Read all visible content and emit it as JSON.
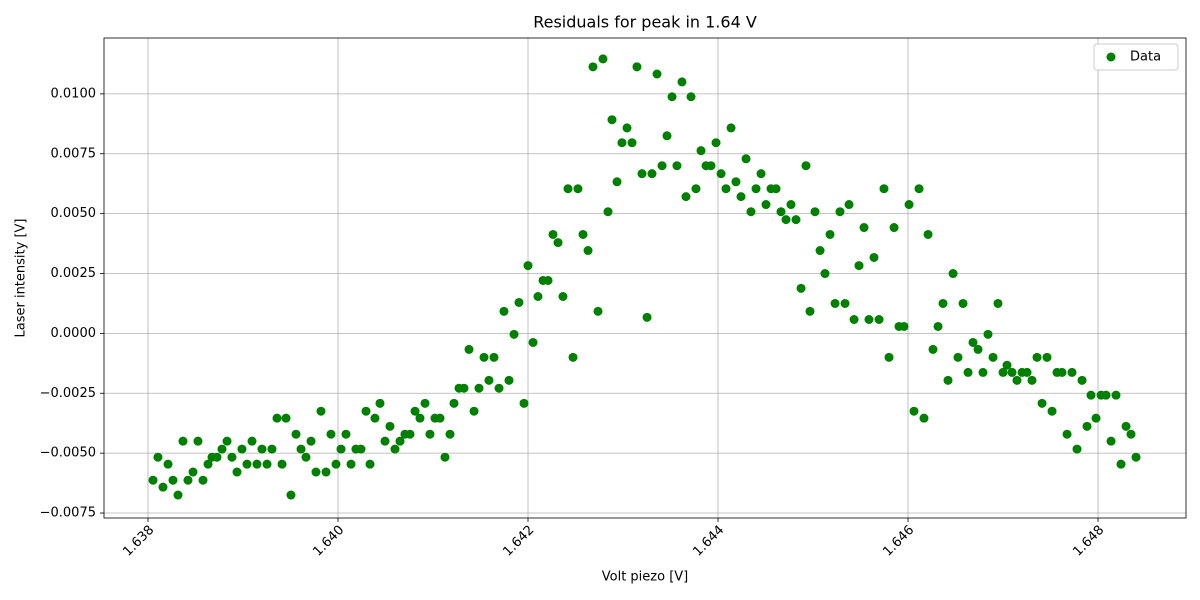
{
  "chart_data": {
    "type": "scatter",
    "title": "Residuals for peak in 1.64 V",
    "x_label": "Volt piezo [V]",
    "y_label": "Laser intensity [V]",
    "xlim": [
      1.637537,
      1.648926
    ],
    "ylim": [
      -0.007708,
      0.012333
    ],
    "xticks": [
      1.638,
      {
        "value": 1.64,
        "label": "1.640"
      },
      1.642,
      1.644,
      1.646,
      1.648
    ],
    "yticks": [
      {
        "value": -0.0075,
        "label": "−0.0075"
      },
      {
        "value": -0.005,
        "label": "−0.0050"
      },
      {
        "value": -0.0025,
        "label": "−0.0025"
      },
      {
        "value": 0,
        "label": "0.0000"
      },
      0.0025,
      {
        "value": 0.005,
        "label": "0.0050"
      },
      0.0075,
      {
        "value": 0.01,
        "label": "0.0100"
      }
    ],
    "grid": true,
    "legend": "upper right",
    "x": [
      1.638053,
      1.638105,
      1.638158,
      1.638211,
      1.638263,
      1.638316,
      1.638368,
      1.638421,
      1.638474,
      1.638526,
      1.638579,
      1.638632,
      1.638674,
      1.638726,
      1.638779,
      1.638832,
      1.638884,
      1.638937,
      1.638989,
      1.639042,
      1.639095,
      1.639147,
      1.6392,
      1.639253,
      1.639305,
      1.639358,
      1.639411,
      1.639453,
      1.639505,
      1.639558,
      1.639611,
      1.639663,
      1.639716,
      1.639768,
      1.639821,
      1.639874,
      1.639926,
      1.639979,
      1.640032,
      1.640084,
      1.640137,
      1.640189,
      1.640242,
      1.640295,
      1.640337,
      1.640389,
      1.640442,
      1.640495,
      1.640547,
      1.6406,
      1.640653,
      1.640705,
      1.640758,
      1.640811,
      1.640863,
      1.640916,
      1.640968,
      1.641021,
      1.641074,
      1.641126,
      1.641179,
      1.641221,
      1.641274,
      1.641326,
      1.641379,
      1.641432,
      1.641484,
      1.641537,
      1.641589,
      1.641642,
      1.641695,
      1.641747,
      1.6418,
      1.641853,
      1.641905,
      1.641958,
      1.642,
      1.642053,
      1.642105,
      1.642158,
      1.642211,
      1.642263,
      1.642316,
      1.642368,
      1.642421,
      1.642474,
      1.642526,
      1.642579,
      1.642632,
      1.642684,
      1.642737,
      1.642789,
      1.642842,
      1.642884,
      1.642937,
      1.642989,
      1.643042,
      1.643095,
      1.643147,
      1.6432,
      1.643253,
      1.643305,
      1.643358,
      1.643411,
      1.643463,
      1.643516,
      1.643568,
      1.643621,
      1.643663,
      1.643716,
      1.643768,
      1.643821,
      1.643874,
      1.643926,
      1.643979,
      1.644032,
      1.644084,
      1.644137,
      1.644189,
      1.644242,
      1.644295,
      1.644347,
      1.6444,
      1.644453,
      1.644505,
      1.644558,
      1.644611,
      1.644663,
      1.644716,
      1.644768,
      1.644821,
      1.644874,
      1.644926,
      1.644968,
      1.645021,
      1.645074,
      1.645126,
      1.645179,
      1.645232,
      1.645284,
      1.645337,
      1.645379,
      1.645432,
      1.645484,
      1.645537,
      1.645589,
      1.645642,
      1.645695,
      1.645747,
      1.6458,
      1.645853,
      1.645905,
      1.645958,
      1.646011,
      1.646063,
      1.646116,
      1.646168,
      1.646211,
      1.646263,
      1.646316,
      1.646368,
      1.646421,
      1.646474,
      1.646526,
      1.646579,
      1.646632,
      1.646684,
      1.646737,
      1.646789,
      1.646842,
      1.646895,
      1.646947,
      1.647,
      1.647042,
      1.647095,
      1.647147,
      1.6472,
      1.647253,
      1.647305,
      1.647358,
      1.647411,
      1.647463,
      1.647516,
      1.647568,
      1.647621,
      1.647674,
      1.647726,
      1.647779,
      1.647832,
      1.647884,
      1.647926,
      1.647979,
      1.648032,
      1.648084,
      1.648137,
      1.648189,
      1.648242,
      1.648295,
      1.648347,
      1.6484
    ],
    "series": [
      {
        "name": "Data",
        "color": "#008000",
        "values": [
          -0.00613,
          -0.00517,
          -0.00642,
          -0.00546,
          -0.00613,
          -0.00675,
          -0.0045,
          -0.00613,
          -0.00579,
          -0.0045,
          -0.00613,
          -0.00546,
          -0.00517,
          -0.00517,
          -0.00483,
          -0.0045,
          -0.00517,
          -0.00579,
          -0.00483,
          -0.00546,
          -0.0045,
          -0.00546,
          -0.00483,
          -0.00546,
          -0.00483,
          -0.00354,
          -0.00546,
          -0.00354,
          -0.00675,
          -0.00421,
          -0.00483,
          -0.00517,
          -0.0045,
          -0.00579,
          -0.00325,
          -0.00579,
          -0.00421,
          -0.00546,
          -0.00483,
          -0.00421,
          -0.00546,
          -0.00483,
          -0.00483,
          -0.00325,
          -0.00546,
          -0.00354,
          -0.00292,
          -0.0045,
          -0.00388,
          -0.00483,
          -0.0045,
          -0.00421,
          -0.00421,
          -0.00325,
          -0.00354,
          -0.00292,
          -0.00421,
          -0.00354,
          -0.00354,
          -0.00517,
          -0.00421,
          -0.00292,
          -0.00229,
          -0.00229,
          -0.00067,
          -0.00325,
          -0.00229,
          -0.001,
          -0.00196,
          -0.001,
          -0.00229,
          0.00092,
          -0.00196,
          -4e-05,
          0.00129,
          -0.00292,
          0.00283,
          -0.00038,
          0.00154,
          0.00221,
          0.00221,
          0.00413,
          0.00379,
          0.00154,
          0.00604,
          -0.001,
          0.00604,
          0.00413,
          0.00346,
          0.01113,
          0.00092,
          0.01146,
          0.00508,
          0.00892,
          0.00633,
          0.00796,
          0.00858,
          0.00796,
          0.01113,
          0.00667,
          0.00067,
          0.00667,
          0.01083,
          0.007,
          0.00825,
          0.00988,
          0.007,
          0.0105,
          0.00571,
          0.00988,
          0.00604,
          0.00763,
          0.007,
          0.007,
          0.00796,
          0.00667,
          0.00604,
          0.00858,
          0.00633,
          0.00571,
          0.00729,
          0.00508,
          0.00604,
          0.00667,
          0.00538,
          0.00604,
          0.00604,
          0.00508,
          0.00475,
          0.00538,
          0.00475,
          0.00188,
          0.007,
          0.00092,
          0.00508,
          0.00346,
          0.0025,
          0.00413,
          0.00125,
          0.00508,
          0.00125,
          0.00538,
          0.00058,
          0.00283,
          0.00442,
          0.00058,
          0.00317,
          0.00058,
          0.00604,
          -0.001,
          0.00442,
          0.00029,
          0.00029,
          0.00538,
          -0.00325,
          0.00604,
          -0.00354,
          0.00413,
          -0.00067,
          0.00029,
          0.00125,
          -0.00196,
          0.0025,
          -0.001,
          0.00125,
          -0.00163,
          -0.00038,
          -0.00067,
          -0.00163,
          -4e-05,
          -0.001,
          0.00125,
          -0.00163,
          -0.00133,
          -0.00163,
          -0.00196,
          -0.00163,
          -0.00163,
          -0.00196,
          -0.001,
          -0.00292,
          -0.001,
          -0.00325,
          -0.00163,
          -0.00163,
          -0.00421,
          -0.00163,
          -0.00483,
          -0.00196,
          -0.00388,
          -0.00258,
          -0.00354,
          -0.00258,
          -0.00258,
          -0.0045,
          -0.00258,
          -0.00546,
          -0.00388,
          -0.00421,
          -0.00517
        ]
      }
    ]
  }
}
